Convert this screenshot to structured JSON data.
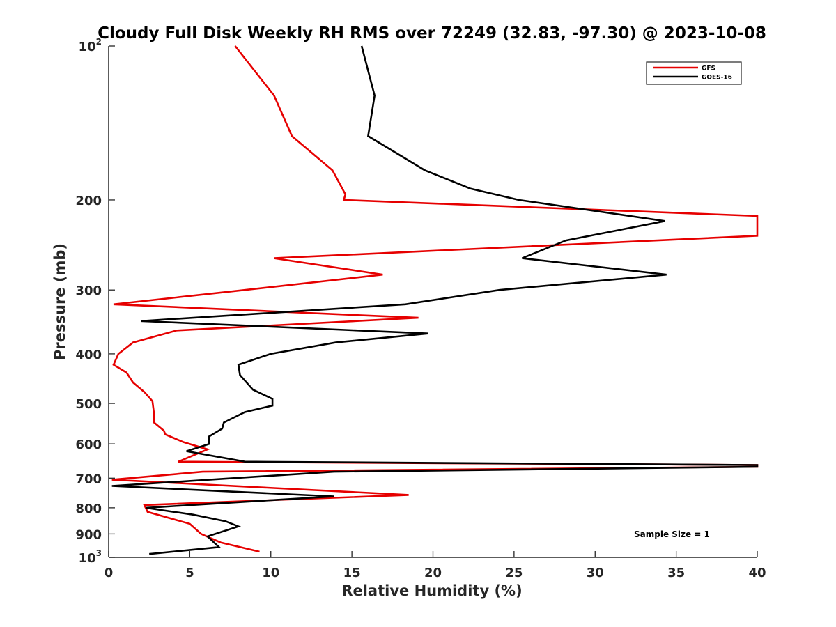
{
  "chart_data": {
    "type": "line",
    "title": "Cloudy Full Disk Weekly RH RMS over 72249 (32.83, -97.30) @ 2023-10-08",
    "xlabel": "Relative Humidity (%)",
    "ylabel": "Pressure (mb)",
    "xlim": [
      0,
      40
    ],
    "ylim": [
      100,
      1000
    ],
    "y_scale": "log",
    "y_reversed": true,
    "grid": false,
    "legend_position": "top-right",
    "x_ticks": [
      "0",
      "5",
      "10",
      "15",
      "20",
      "25",
      "30",
      "35",
      "40"
    ],
    "x_tick_values": [
      0,
      5,
      10,
      15,
      20,
      25,
      30,
      35,
      40
    ],
    "y_ticks": [
      {
        "value": 100,
        "base": "10",
        "exp": "2"
      },
      {
        "value": 200,
        "label": "200"
      },
      {
        "value": 300,
        "label": "300"
      },
      {
        "value": 400,
        "label": "400"
      },
      {
        "value": 500,
        "label": "500"
      },
      {
        "value": 600,
        "label": "600"
      },
      {
        "value": 700,
        "label": "700"
      },
      {
        "value": 800,
        "label": "800"
      },
      {
        "value": 900,
        "label": "900"
      },
      {
        "value": 1000,
        "base": "10",
        "exp": "3"
      }
    ],
    "series": [
      {
        "name": "GFS",
        "color": "#e60000",
        "points": [
          [
            7.8,
            100
          ],
          [
            10.2,
            125
          ],
          [
            11.3,
            150
          ],
          [
            13.8,
            175
          ],
          [
            14.6,
            195
          ],
          [
            14.5,
            200
          ],
          [
            40,
            215
          ],
          [
            40,
            235
          ],
          [
            10.2,
            260
          ],
          [
            16.9,
            280
          ],
          [
            8.4,
            300
          ],
          [
            0.3,
            320
          ],
          [
            19.1,
            340
          ],
          [
            4.2,
            360
          ],
          [
            1.5,
            380
          ],
          [
            0.6,
            400
          ],
          [
            0.3,
            420
          ],
          [
            1.1,
            435
          ],
          [
            1.5,
            455
          ],
          [
            2.2,
            475
          ],
          [
            2.7,
            495
          ],
          [
            2.8,
            525
          ],
          [
            2.8,
            545
          ],
          [
            3.4,
            565
          ],
          [
            3.5,
            575
          ],
          [
            4.6,
            595
          ],
          [
            6.1,
            615
          ],
          [
            4.3,
            650
          ],
          [
            40,
            660
          ],
          [
            40,
            665
          ],
          [
            5.8,
            680
          ],
          [
            0.2,
            705
          ],
          [
            18.5,
            755
          ],
          [
            2.2,
            790
          ],
          [
            2.4,
            815
          ],
          [
            5.0,
            860
          ],
          [
            5.7,
            900
          ],
          [
            6.9,
            935
          ],
          [
            9.3,
            975
          ]
        ]
      },
      {
        "name": "GOES-16",
        "color": "#000000",
        "points": [
          [
            15.6,
            100
          ],
          [
            16.4,
            125
          ],
          [
            16.0,
            150
          ],
          [
            19.5,
            175
          ],
          [
            22.3,
            190
          ],
          [
            25.3,
            200
          ],
          [
            34.3,
            220
          ],
          [
            28.2,
            240
          ],
          [
            25.5,
            260
          ],
          [
            34.4,
            280
          ],
          [
            24.1,
            300
          ],
          [
            18.3,
            320
          ],
          [
            2.0,
            345
          ],
          [
            19.7,
            365
          ],
          [
            14.0,
            380
          ],
          [
            10.0,
            400
          ],
          [
            8.0,
            420
          ],
          [
            8.1,
            440
          ],
          [
            8.9,
            470
          ],
          [
            10.1,
            490
          ],
          [
            10.1,
            505
          ],
          [
            8.4,
            520
          ],
          [
            7.1,
            545
          ],
          [
            7.0,
            560
          ],
          [
            6.2,
            580
          ],
          [
            6.2,
            600
          ],
          [
            4.8,
            620
          ],
          [
            8.4,
            650
          ],
          [
            40,
            660
          ],
          [
            40,
            665
          ],
          [
            13.9,
            680
          ],
          [
            0.2,
            725
          ],
          [
            13.9,
            760
          ],
          [
            6.6,
            785
          ],
          [
            2.3,
            800
          ],
          [
            5.2,
            825
          ],
          [
            7.2,
            850
          ],
          [
            8.0,
            870
          ],
          [
            6.1,
            910
          ],
          [
            6.8,
            955
          ],
          [
            2.5,
            985
          ]
        ]
      }
    ],
    "annotations": [
      {
        "text": "Sample Size = 1",
        "x": 33.5,
        "y": 900
      }
    ]
  }
}
